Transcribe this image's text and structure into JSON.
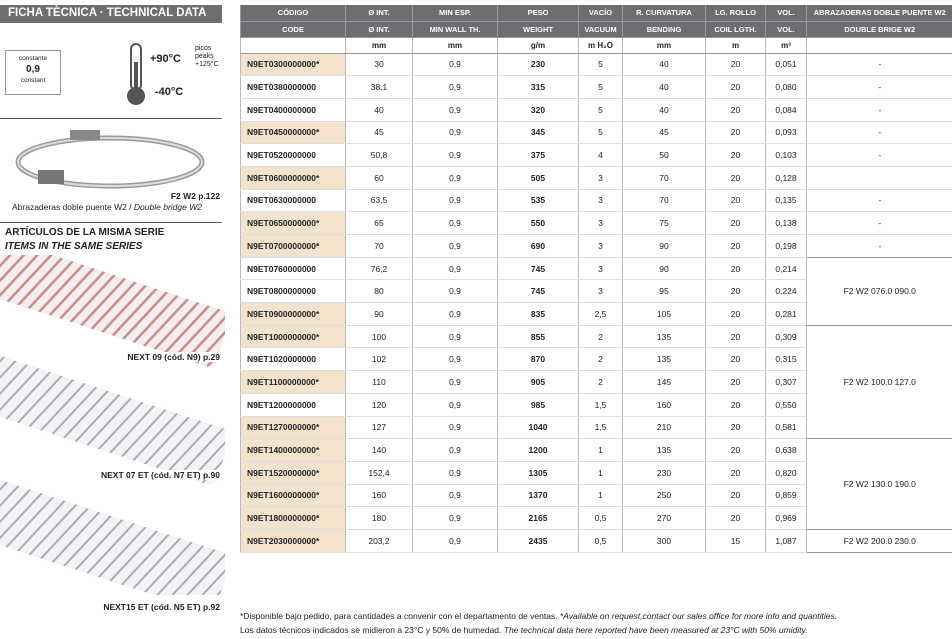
{
  "header": {
    "title": "FICHA TÈCNICA · TECHNICAL DATA"
  },
  "properties": {
    "wall_label_top": "constante",
    "wall_value": "0,9",
    "wall_label_bottom": "constant",
    "temp_max": "+90°C",
    "peaks_es": "picos",
    "peaks_en": "peaks",
    "temp_peak": "+125°C",
    "temp_min": "-40°C"
  },
  "accessory": {
    "ref": "F2 W2 p.122",
    "caption_es": "Abrazaderas doble puente W2 / ",
    "caption_en": "Double bridge W2"
  },
  "related": {
    "title_es": "ARTÍCULOS DE LA MISMA SERIE",
    "title_en": "ITEMS IN THE SAME SERIES",
    "items": [
      "NEXT 09 (cód. N9) p.29",
      "NEXT 07 ET (cód. N7 ET) p.90",
      "NEXT15 ET (cód. N5 ET) p.92"
    ]
  },
  "table": {
    "header_es": [
      "CÓDIGO",
      "Ø INT.",
      "MIN ESP.",
      "PESO",
      "VACÍO",
      "R. CURVATURA",
      "LG. ROLLO",
      "VOL.",
      "ABRAZADERAS DOBLE PUENTE W2"
    ],
    "header_en": [
      "CODE",
      "Ø INT.",
      "MIN WALL TH.",
      "WEIGHT",
      "VACUUM",
      "BENDING",
      "COIL LGTH.",
      "VOL.",
      "DOUBLE BRIGE W2"
    ],
    "units": [
      null,
      "mm",
      "mm",
      "g/m",
      "m H₂O",
      "mm",
      "m",
      "m³",
      null
    ],
    "rows": [
      [
        "N9ET0300000000*",
        "30",
        "0,9",
        "230",
        "5",
        "40",
        "20",
        "0,051",
        "-"
      ],
      [
        "N9ET0380000000",
        "38,1",
        "0,9",
        "315",
        "5",
        "40",
        "20",
        "0,080",
        "-"
      ],
      [
        "N9ET0400000000",
        "40",
        "0,9",
        "320",
        "5",
        "40",
        "20",
        "0,084",
        "-"
      ],
      [
        "N9ET0450000000*",
        "45",
        "0,9",
        "345",
        "5",
        "45",
        "20",
        "0,093",
        "-"
      ],
      [
        "N9ET0520000000",
        "50,8",
        "0,9",
        "375",
        "4",
        "50",
        "20",
        "0,103",
        "-"
      ],
      [
        "N9ET0600000000*",
        "60",
        "0,9",
        "505",
        "3",
        "70",
        "20",
        "0,128",
        null
      ],
      [
        "N9ET0630000000",
        "63,5",
        "0,9",
        "535",
        "3",
        "70",
        "20",
        "0,135",
        "-"
      ],
      [
        "N9ET0650000000*",
        "65",
        "0,9",
        "550",
        "3",
        "75",
        "20",
        "0,138",
        "-"
      ],
      [
        "N9ET0700000000*",
        "70",
        "0,9",
        "690",
        "3",
        "90",
        "20",
        "0,198",
        "-"
      ],
      [
        "N9ET0760000000",
        "76,2",
        "0,9",
        "745",
        "3",
        "90",
        "20",
        "0,214",
        "F2 W2 076.0 090.0"
      ],
      [
        "N9ET0800000000",
        "80",
        "0,9",
        "745",
        "3",
        "95",
        "20",
        "0,224",
        null
      ],
      [
        "N9ET0900000000*",
        "90",
        "0,9",
        "835",
        "2,5",
        "105",
        "20",
        "0,281",
        null
      ],
      [
        "N9ET1000000000*",
        "100",
        "0,9",
        "855",
        "2",
        "135",
        "20",
        "0,309",
        "F2 W2 100.0 127.0"
      ],
      [
        "N9ET1020000000",
        "102",
        "0,9",
        "870",
        "2",
        "135",
        "20",
        "0,315",
        null
      ],
      [
        "N9ET1100000000*",
        "110",
        "0,9",
        "905",
        "2",
        "145",
        "20",
        "0,307",
        null
      ],
      [
        "N9ET1200000000",
        "120",
        "0,9",
        "985",
        "1,5",
        "160",
        "20",
        "0,550",
        null
      ],
      [
        "N9ET1270000000*",
        "127",
        "0,9",
        "1040",
        "1,5",
        "210",
        "20",
        "0,581",
        null
      ],
      [
        "N9ET1400000000*",
        "140",
        "0,9",
        "1200",
        "1",
        "135",
        "20",
        "0,638",
        "F2 W2 130.0 190.0"
      ],
      [
        "N9ET1520000000*",
        "152,4",
        "0,9",
        "1305",
        "1",
        "230",
        "20",
        "0,820",
        null
      ],
      [
        "N9ET1600000000*",
        "160",
        "0,9",
        "1370",
        "1",
        "250",
        "20",
        "0,859",
        null
      ],
      [
        "N9ET1800000000*",
        "180",
        "0,9",
        "2165",
        "0,5",
        "270",
        "20",
        "0,969",
        null
      ],
      [
        "N9ET2030000000*",
        "203,2",
        "0,9",
        "2435",
        "0,5",
        "300",
        "15",
        "1,087",
        "F2 W2 200.0 230.0"
      ]
    ]
  },
  "footnotes": [
    {
      "es": "*Disponible bajo pedido, para cantidades a convenir con el departamento de ventas. ",
      "en": "*Available on request,contact our sales office for more info and quantities."
    },
    {
      "es": "Los datos técnicos indicados se midieron a 23°C y 50% de humedad. ",
      "en": "The technical data here reported have been measured at 23°C with 50% umidity."
    }
  ]
}
